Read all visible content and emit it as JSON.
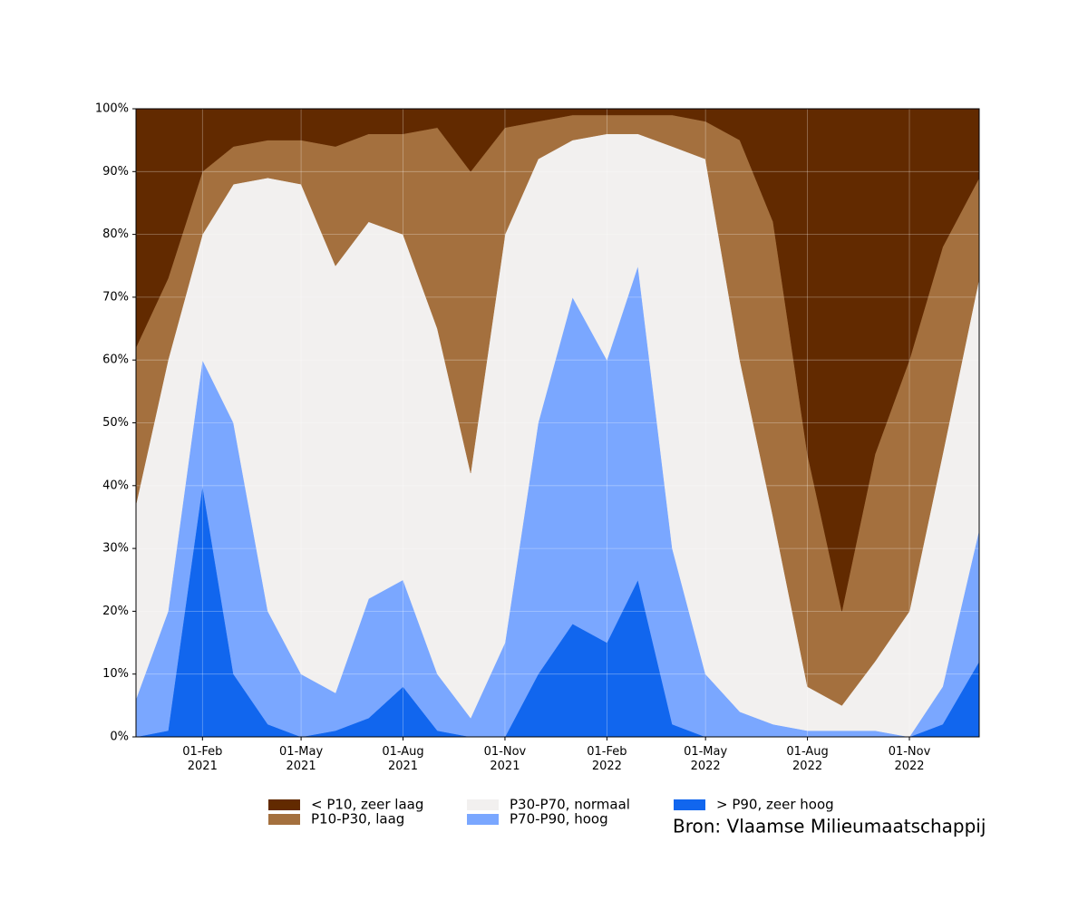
{
  "chart_data": {
    "type": "stacked_area",
    "x": [
      "2020-12-03",
      "2021-01-01",
      "2021-02-01",
      "2021-03-01",
      "2021-04-01",
      "2021-05-01",
      "2021-06-01",
      "2021-07-01",
      "2021-08-01",
      "2021-09-01",
      "2021-10-01",
      "2021-11-01",
      "2021-12-01",
      "2022-01-01",
      "2022-02-01",
      "2022-03-01",
      "2022-04-01",
      "2022-05-01",
      "2022-06-01",
      "2022-07-01",
      "2022-08-01",
      "2022-09-01",
      "2022-10-01",
      "2022-11-01",
      "2022-12-01",
      "2023-01-03"
    ],
    "series": [
      {
        "name": "> P90, zeer hoog",
        "color": "#1166ee",
        "values": [
          0,
          1,
          40,
          10,
          2,
          0,
          1,
          3,
          8,
          1,
          0,
          0,
          10,
          18,
          15,
          25,
          2,
          0,
          0,
          0,
          0,
          0,
          0,
          0,
          2,
          12
        ]
      },
      {
        "name": "P70-P90, hoog",
        "color": "#7aa7ff",
        "values": [
          6,
          19,
          20,
          40,
          18,
          10,
          6,
          19,
          17,
          9,
          3,
          15,
          40,
          52,
          45,
          50,
          28,
          10,
          4,
          2,
          1,
          1,
          1,
          0,
          6,
          21
        ]
      },
      {
        "name": "P30-P70, normaal",
        "color": "#f2f0ef",
        "values": [
          31,
          40,
          20,
          38,
          69,
          78,
          68,
          60,
          55,
          55,
          39,
          65,
          42,
          25,
          36,
          21,
          64,
          82,
          56,
          33,
          7,
          4,
          11,
          20,
          37,
          40
        ]
      },
      {
        "name": "P10-P30, laag",
        "color": "#a4703e",
        "values": [
          25,
          13,
          10,
          6,
          6,
          7,
          19,
          14,
          16,
          32,
          48,
          17,
          6,
          4,
          3,
          3,
          5,
          6,
          35,
          47,
          37,
          15,
          33,
          40,
          33,
          16
        ]
      },
      {
        "name": "< P10, zeer laag",
        "color": "#622a00",
        "values": [
          38,
          27,
          10,
          6,
          5,
          5,
          6,
          4,
          4,
          3,
          10,
          3,
          2,
          1,
          1,
          1,
          1,
          2,
          5,
          18,
          55,
          80,
          55,
          40,
          22,
          11
        ]
      }
    ],
    "legend_order": [
      4,
      3,
      2,
      1,
      0
    ],
    "xlim": [
      "2020-12-03",
      "2023-01-03"
    ],
    "xticks": [
      {
        "value": "2021-02-01",
        "label": "01-Feb\n2021"
      },
      {
        "value": "2021-05-01",
        "label": "01-May\n2021"
      },
      {
        "value": "2021-08-01",
        "label": "01-Aug\n2021"
      },
      {
        "value": "2021-11-01",
        "label": "01-Nov\n2021"
      },
      {
        "value": "2022-02-01",
        "label": "01-Feb\n2022"
      },
      {
        "value": "2022-05-01",
        "label": "01-May\n2022"
      },
      {
        "value": "2022-08-01",
        "label": "01-Aug\n2022"
      },
      {
        "value": "2022-11-01",
        "label": "01-Nov\n2022"
      }
    ],
    "ylim": [
      0,
      100
    ],
    "yticks": [
      {
        "value": 0,
        "label": "0%"
      },
      {
        "value": 10,
        "label": "10%"
      },
      {
        "value": 20,
        "label": "20%"
      },
      {
        "value": 30,
        "label": "30%"
      },
      {
        "value": 40,
        "label": "40%"
      },
      {
        "value": 50,
        "label": "50%"
      },
      {
        "value": 60,
        "label": "60%"
      },
      {
        "value": 70,
        "label": "70%"
      },
      {
        "value": 80,
        "label": "80%"
      },
      {
        "value": 90,
        "label": "90%"
      },
      {
        "value": 100,
        "label": "100%"
      }
    ],
    "grid": true,
    "source": "Bron: Vlaamse Milieumaatschappij"
  }
}
